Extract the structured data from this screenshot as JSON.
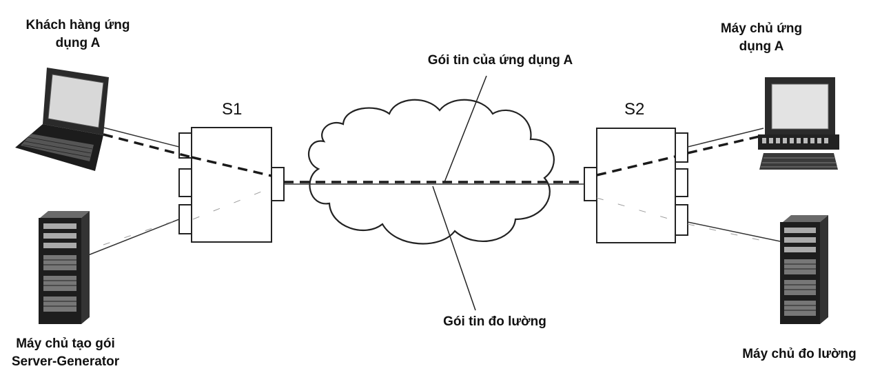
{
  "labels": {
    "client_a": [
      "Khách hàng ứng",
      "dụng A"
    ],
    "server_a": [
      "Máy chủ ứng",
      "dụng A"
    ],
    "generator": [
      "Máy chủ tạo gói",
      "Server-Generator"
    ],
    "measure_server": "Máy chủ đo lường",
    "app_packet": "Gói tin của ứng dụng A",
    "measure_packet": "Gói tin đo lường"
  },
  "switches": {
    "s1": "S1",
    "s2": "S2"
  },
  "icons": {
    "laptop": "laptop-icon",
    "desktop": "desktop-computer-icon",
    "tower_left": "server-tower-icon",
    "tower_right": "server-tower-icon",
    "cloud": "network-cloud-icon"
  },
  "colors": {
    "ink": "#111111",
    "line": "#222222",
    "paper": "#ffffff"
  }
}
